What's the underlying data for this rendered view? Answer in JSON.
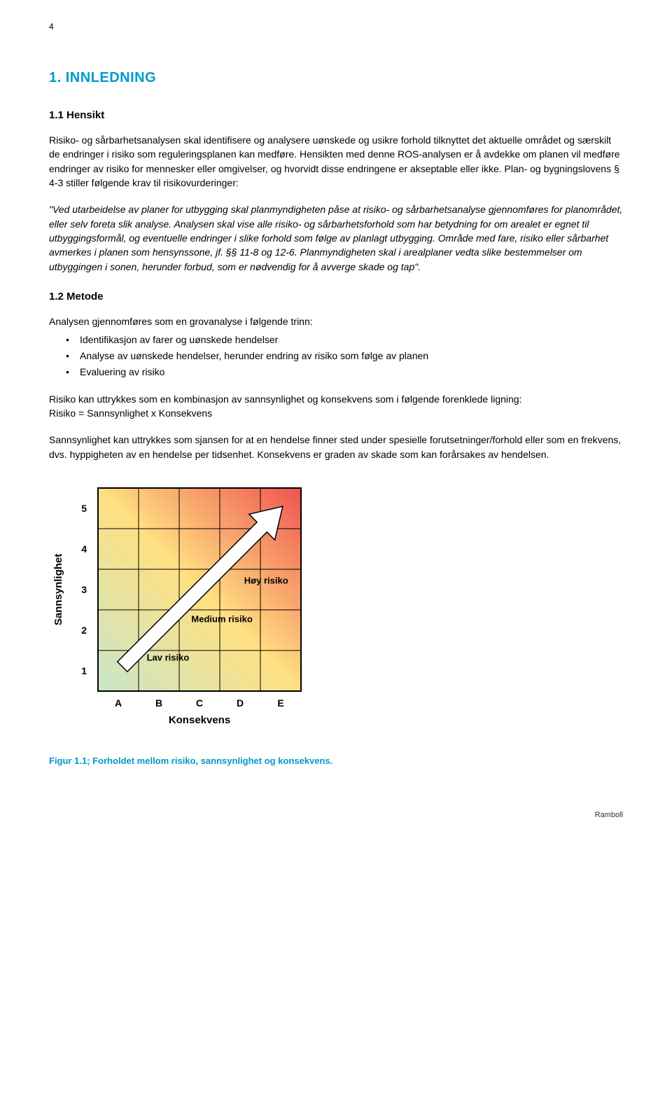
{
  "page_number": "4",
  "heading_main": "1.   INNLEDNING",
  "section_1_1": {
    "title": "1.1   Hensikt",
    "para1": "Risiko- og sårbarhetsanalysen skal identifisere og analysere uønskede og usikre forhold tilknyttet det aktuelle området og særskilt de endringer i risiko som reguleringsplanen kan medføre. Hensikten med denne ROS-analysen er å avdekke om planen vil medføre endringer av risiko for mennesker eller omgivelser, og hvorvidt disse endringene er akseptable eller ikke. Plan- og bygningslovens § 4-3 stiller følgende krav til risikovurderinger:",
    "para2_italic": "\"Ved utarbeidelse av planer for utbygging skal planmyndigheten påse at risiko- og sårbarhetsanalyse gjennomføres for planområdet, eller selv foreta slik analyse. Analysen skal vise alle risiko- og sårbarhetsforhold som har betydning for om arealet er egnet til utbyggingsformål, og eventuelle endringer i slike forhold som følge av planlagt utbygging. Område med fare, risiko eller sårbarhet avmerkes i planen som hensynssone, jf. §§ 11-8 og 12-6. Planmyndigheten skal i arealplaner vedta slike bestemmelser om utbyggingen i sonen, herunder forbud, som er nødvendig for å avverge skade og tap\"."
  },
  "section_1_2": {
    "title": "1.2   Metode",
    "intro": "Analysen gjennomføres som en grovanalyse i følgende trinn:",
    "bullets": [
      "Identifikasjon av farer og uønskede hendelser",
      "Analyse av uønskede hendelser, herunder endring av risiko som følge av planen",
      "Evaluering av risiko"
    ],
    "para_risk_intro": "Risiko kan uttrykkes som en kombinasjon av sannsynlighet og konsekvens som i følgende forenklede ligning:",
    "para_risk_eq": "Risiko = Sannsynlighet x Konsekvens",
    "para_probability": "Sannsynlighet kan uttrykkes som sjansen for at en hendelse finner sted under spesielle forutsetninger/forhold eller som en frekvens, dvs. hyppigheten av en hendelse per tidsenhet. Konsekvens er graden av skade som kan forårsakes av hendelsen."
  },
  "chart": {
    "type": "risk-matrix",
    "y_label": "Sannsynlighet",
    "x_label": "Konsekvens",
    "y_ticks": [
      "5",
      "4",
      "3",
      "2",
      "1"
    ],
    "x_ticks": [
      "A",
      "B",
      "C",
      "D",
      "E"
    ],
    "annotations": {
      "high": "Høy risiko",
      "medium": "Medium risiko",
      "low": "Lav risiko"
    },
    "colors": {
      "gradient_low": "#c8e6c9",
      "gradient_mid": "#ffe082",
      "gradient_high": "#ef5350",
      "border": "#000000",
      "grid": "#000000",
      "arrow": "#ffffff",
      "arrow_stroke": "#000000",
      "text": "#000000"
    },
    "cell_size": 58,
    "axis_fontsize": 14,
    "label_fontsize": 15,
    "annotation_fontsize": 13
  },
  "figure_caption": "Figur 1.1; Forholdet mellom risiko, sannsynlighet og konsekvens.",
  "footer": "Ramboll"
}
